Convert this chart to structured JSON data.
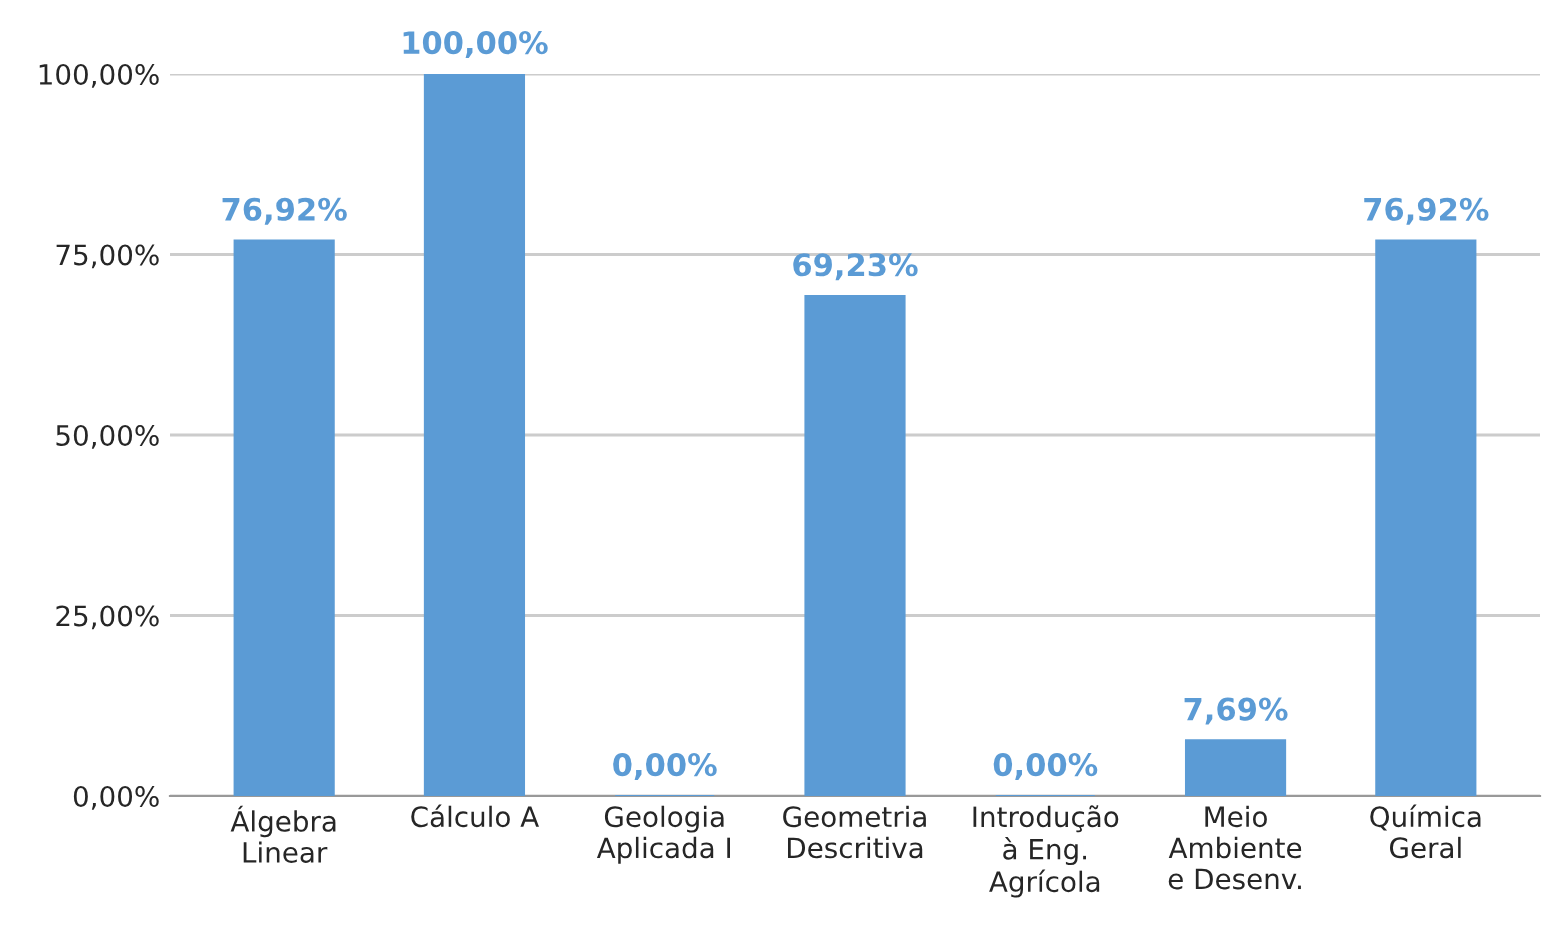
{
  "chart_data": {
    "type": "bar",
    "categories": [
      "Álgebra\nLinear",
      "Cálculo A",
      "Geologia\nAplicada I",
      "Geometria\nDescritiva",
      "Introdução\nà Eng.\nAgrícola",
      "Meio\nAmbiente\ne Desenv.",
      "Química\nGeral"
    ],
    "values": [
      76.92,
      100,
      0,
      69.23,
      0,
      7.69,
      76.92
    ],
    "value_labels": [
      "76,92%",
      "100,00%",
      "0,00%",
      "69,23%",
      "0,00%",
      "7,69%",
      "76,92%"
    ],
    "color": "#5b9bd5",
    "ylim": [
      0,
      100
    ],
    "yticks": [
      {
        "value": 0,
        "label": "0,00%"
      },
      {
        "value": 25,
        "label": "25,00%"
      },
      {
        "value": 50,
        "label": "50,00%"
      },
      {
        "value": 75,
        "label": "75,00%"
      },
      {
        "value": 100,
        "label": "100,00%"
      }
    ],
    "grid": "y"
  }
}
